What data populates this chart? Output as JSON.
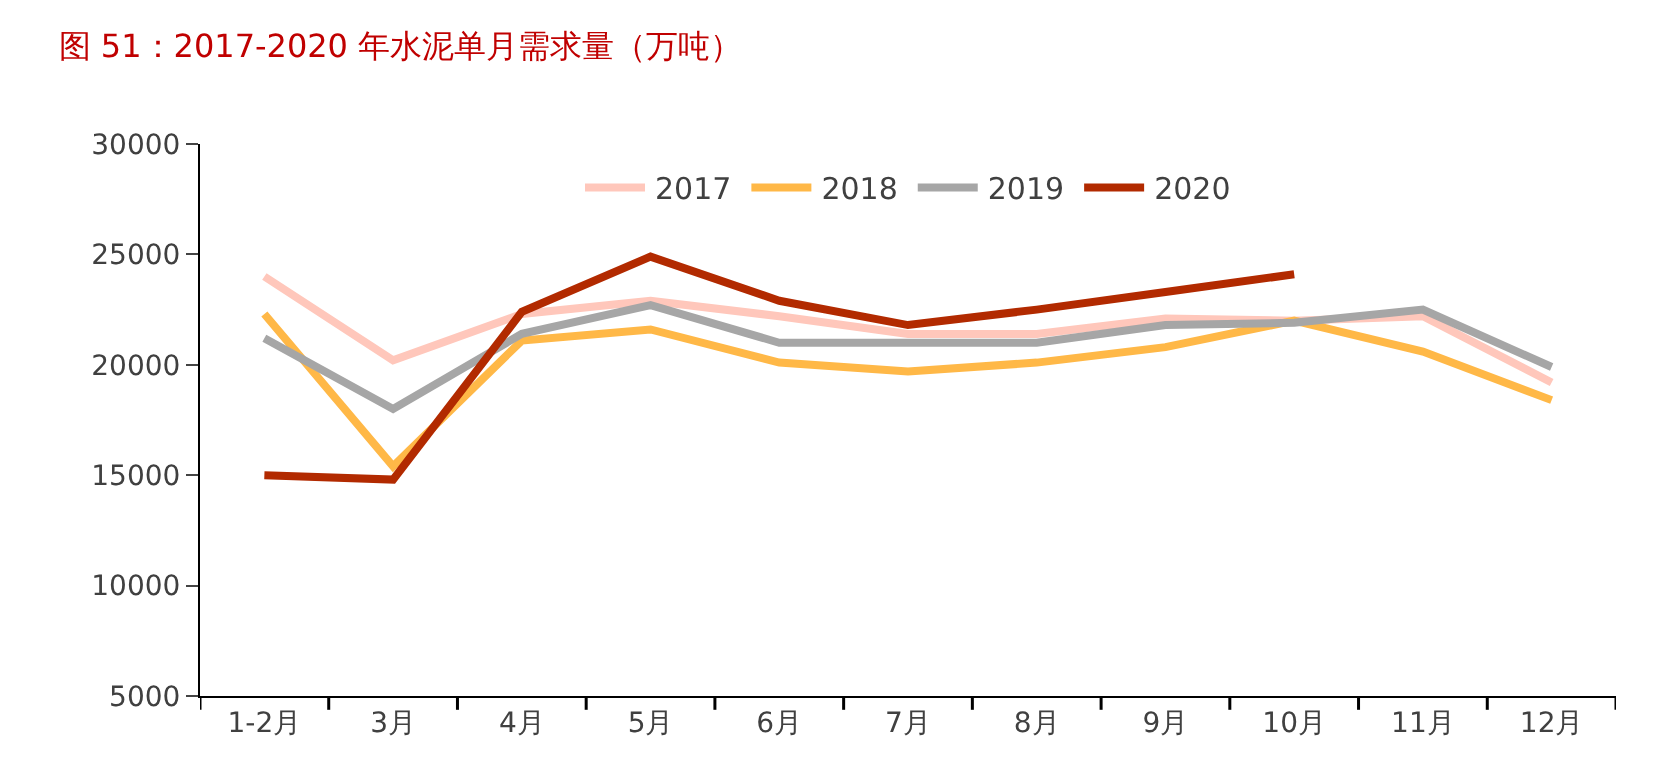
{
  "chart_data": {
    "type": "line",
    "title": "图 51：2017-2020 年水泥单月需求量（万吨）",
    "categories": [
      "1-2月",
      "3月",
      "4月",
      "5月",
      "6月",
      "7月",
      "8月",
      "9月",
      "10月",
      "11月",
      "12月"
    ],
    "series": [
      {
        "name": "2017",
        "color": "#ffc7bb",
        "values": [
          24000,
          20200,
          22300,
          22900,
          22200,
          21400,
          21400,
          22100,
          22000,
          22200,
          19200
        ]
      },
      {
        "name": "2018",
        "color": "#ffb847",
        "values": [
          22300,
          15400,
          21100,
          21600,
          20100,
          19700,
          20100,
          20800,
          22000,
          20600,
          18400
        ]
      },
      {
        "name": "2019",
        "color": "#a6a6a6",
        "values": [
          21200,
          18000,
          21400,
          22700,
          21000,
          21000,
          21000,
          21800,
          21900,
          22500,
          19900
        ]
      },
      {
        "name": "2020",
        "color": "#b22a00",
        "values": [
          15000,
          14800,
          22400,
          24900,
          22900,
          21800,
          22500,
          23300,
          24100,
          null,
          null
        ]
      }
    ],
    "ylim": [
      5000,
      30000
    ],
    "yticks": [
      5000,
      10000,
      15000,
      20000,
      25000,
      30000
    ],
    "legend": "top",
    "marker": "none",
    "line_style": "solid"
  }
}
